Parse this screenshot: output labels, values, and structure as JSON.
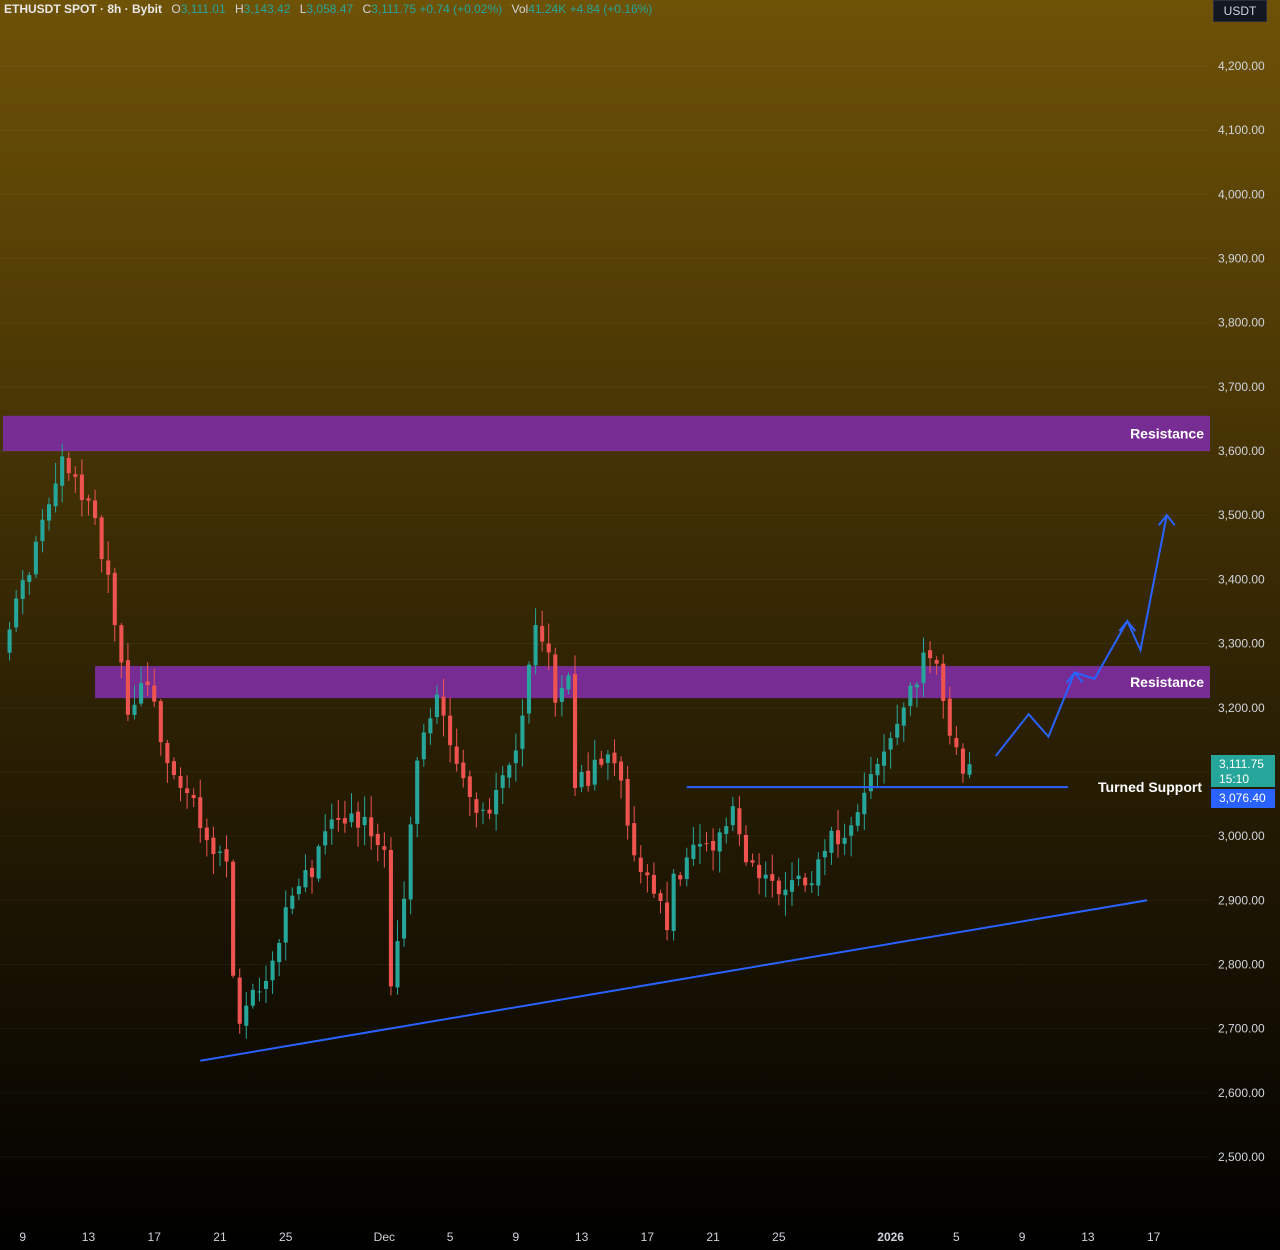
{
  "legend": {
    "symbol": "ETHUSDT SPOT · 8h · Bybit",
    "open_label": "O",
    "open": "3,111.01",
    "high_label": "H",
    "high": "3,143.42",
    "low_label": "L",
    "low": "3,058.47",
    "close_label": "C",
    "close": "3,111.75",
    "change": "+0.74 (+0.02%)",
    "vol_label": "Vol",
    "vol": "41.24K",
    "vol_change": "+4.84 (+0.16%)"
  },
  "price_axis": {
    "unit": "USDT",
    "current_price": "3,111.75",
    "countdown": "15:10",
    "support_price": "3,076.40"
  },
  "colors": {
    "up": "#26a69a",
    "down": "#ef5350",
    "zone": "#7b2d9c",
    "line": "#2962ff",
    "bg_top": "#6e5206",
    "bg_bottom": "#000000"
  },
  "chart_data": {
    "type": "candlestick",
    "interval": "8h",
    "ylim": [
      2450,
      4300
    ],
    "x_ticks": [
      "9",
      "13",
      "17",
      "21",
      "25",
      "Dec",
      "5",
      "9",
      "13",
      "17",
      "21",
      "25",
      "2026",
      "5",
      "9",
      "13",
      "17"
    ],
    "y_ticks": [
      "2,500.00",
      "2,600.00",
      "2,700.00",
      "2,800.00",
      "2,900.00",
      "3,000.00",
      "3,100.00",
      "3,200.00",
      "3,300.00",
      "3,400.00",
      "3,500.00",
      "3,600.00",
      "3,700.00",
      "3,800.00",
      "3,900.00",
      "4,000.00",
      "4,100.00",
      "4,200.00"
    ],
    "y_tick_values": [
      2500,
      2600,
      2700,
      2800,
      2900,
      3000,
      3100,
      3200,
      3300,
      3400,
      3500,
      3600,
      3700,
      3800,
      3900,
      4000,
      4100,
      4200
    ],
    "close_path": [
      [
        0,
        3300
      ],
      [
        4,
        3420
      ],
      [
        9,
        3580
      ],
      [
        13,
        3520
      ],
      [
        16,
        3410
      ],
      [
        19,
        3200
      ],
      [
        22,
        3250
      ],
      [
        25,
        3100
      ],
      [
        28,
        3080
      ],
      [
        31,
        2980
      ],
      [
        34,
        2960
      ],
      [
        35,
        2780
      ],
      [
        36,
        2700
      ],
      [
        38,
        2750
      ],
      [
        41,
        2800
      ],
      [
        44,
        2920
      ],
      [
        47,
        2950
      ],
      [
        50,
        3040
      ],
      [
        53,
        3030
      ],
      [
        55,
        3020
      ],
      [
        58,
        2980
      ],
      [
        59,
        2780
      ],
      [
        61,
        2900
      ],
      [
        63,
        3120
      ],
      [
        66,
        3220
      ],
      [
        69,
        3120
      ],
      [
        72,
        3030
      ],
      [
        75,
        3060
      ],
      [
        78,
        3120
      ],
      [
        80,
        3280
      ],
      [
        81,
        3340
      ],
      [
        83,
        3280
      ],
      [
        84,
        3200
      ],
      [
        86,
        3250
      ],
      [
        87,
        3080
      ],
      [
        89,
        3090
      ],
      [
        91,
        3120
      ],
      [
        94,
        3100
      ],
      [
        95,
        3020
      ],
      [
        97,
        2950
      ],
      [
        100,
        2910
      ],
      [
        101,
        2840
      ],
      [
        102,
        2930
      ],
      [
        105,
        2980
      ],
      [
        108,
        2990
      ],
      [
        111,
        3040
      ],
      [
        113,
        2970
      ],
      [
        115,
        2940
      ],
      [
        118,
        2920
      ],
      [
        120,
        2930
      ],
      [
        123,
        2940
      ],
      [
        125,
        2990
      ],
      [
        127,
        3000
      ],
      [
        129,
        3020
      ],
      [
        131,
        3080
      ],
      [
        133,
        3110
      ],
      [
        135,
        3150
      ],
      [
        137,
        3200
      ],
      [
        139,
        3240
      ],
      [
        140,
        3300
      ],
      [
        142,
        3270
      ],
      [
        144,
        3150
      ],
      [
        146,
        3100
      ],
      [
        147,
        3112
      ]
    ],
    "annotations": [
      {
        "type": "zone",
        "label": "Resistance",
        "y_low": 3600,
        "y_high": 3655,
        "x_start": 0
      },
      {
        "type": "zone",
        "label": "Resistance",
        "y_low": 3215,
        "y_high": 3265,
        "x_start": 14
      },
      {
        "type": "hline",
        "label": "Turned Support",
        "y": 3076.4,
        "x_start": 104,
        "x_end": 162
      },
      {
        "type": "trendline",
        "label": "",
        "points": [
          [
            30,
            2650
          ],
          [
            174,
            2900
          ]
        ]
      },
      {
        "type": "projection_arrow",
        "label": "",
        "points": [
          [
            151,
            3125
          ],
          [
            156,
            3190
          ],
          [
            159,
            3155
          ],
          [
            163,
            3255
          ],
          [
            166,
            3245
          ],
          [
            171,
            3335
          ],
          [
            173,
            3290
          ],
          [
            177,
            3500
          ]
        ]
      }
    ]
  }
}
